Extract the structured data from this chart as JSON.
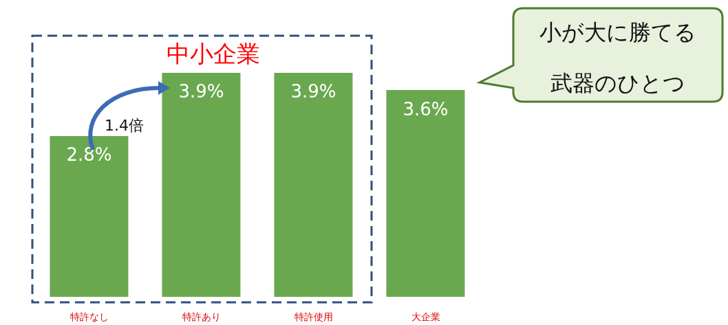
{
  "chart_data": {
    "type": "bar",
    "categories": [
      "特許なし",
      "特許あり",
      "特許使用",
      "大企業"
    ],
    "values": [
      2.8,
      3.9,
      3.9,
      3.6
    ],
    "value_labels": [
      "2.8%",
      "3.9%",
      "3.9%",
      "3.6%"
    ],
    "color": "#6aa84f",
    "annotations": [
      "中小企業",
      "1.4倍",
      "小が大に勝てる",
      "武器のひとつ"
    ]
  }
}
